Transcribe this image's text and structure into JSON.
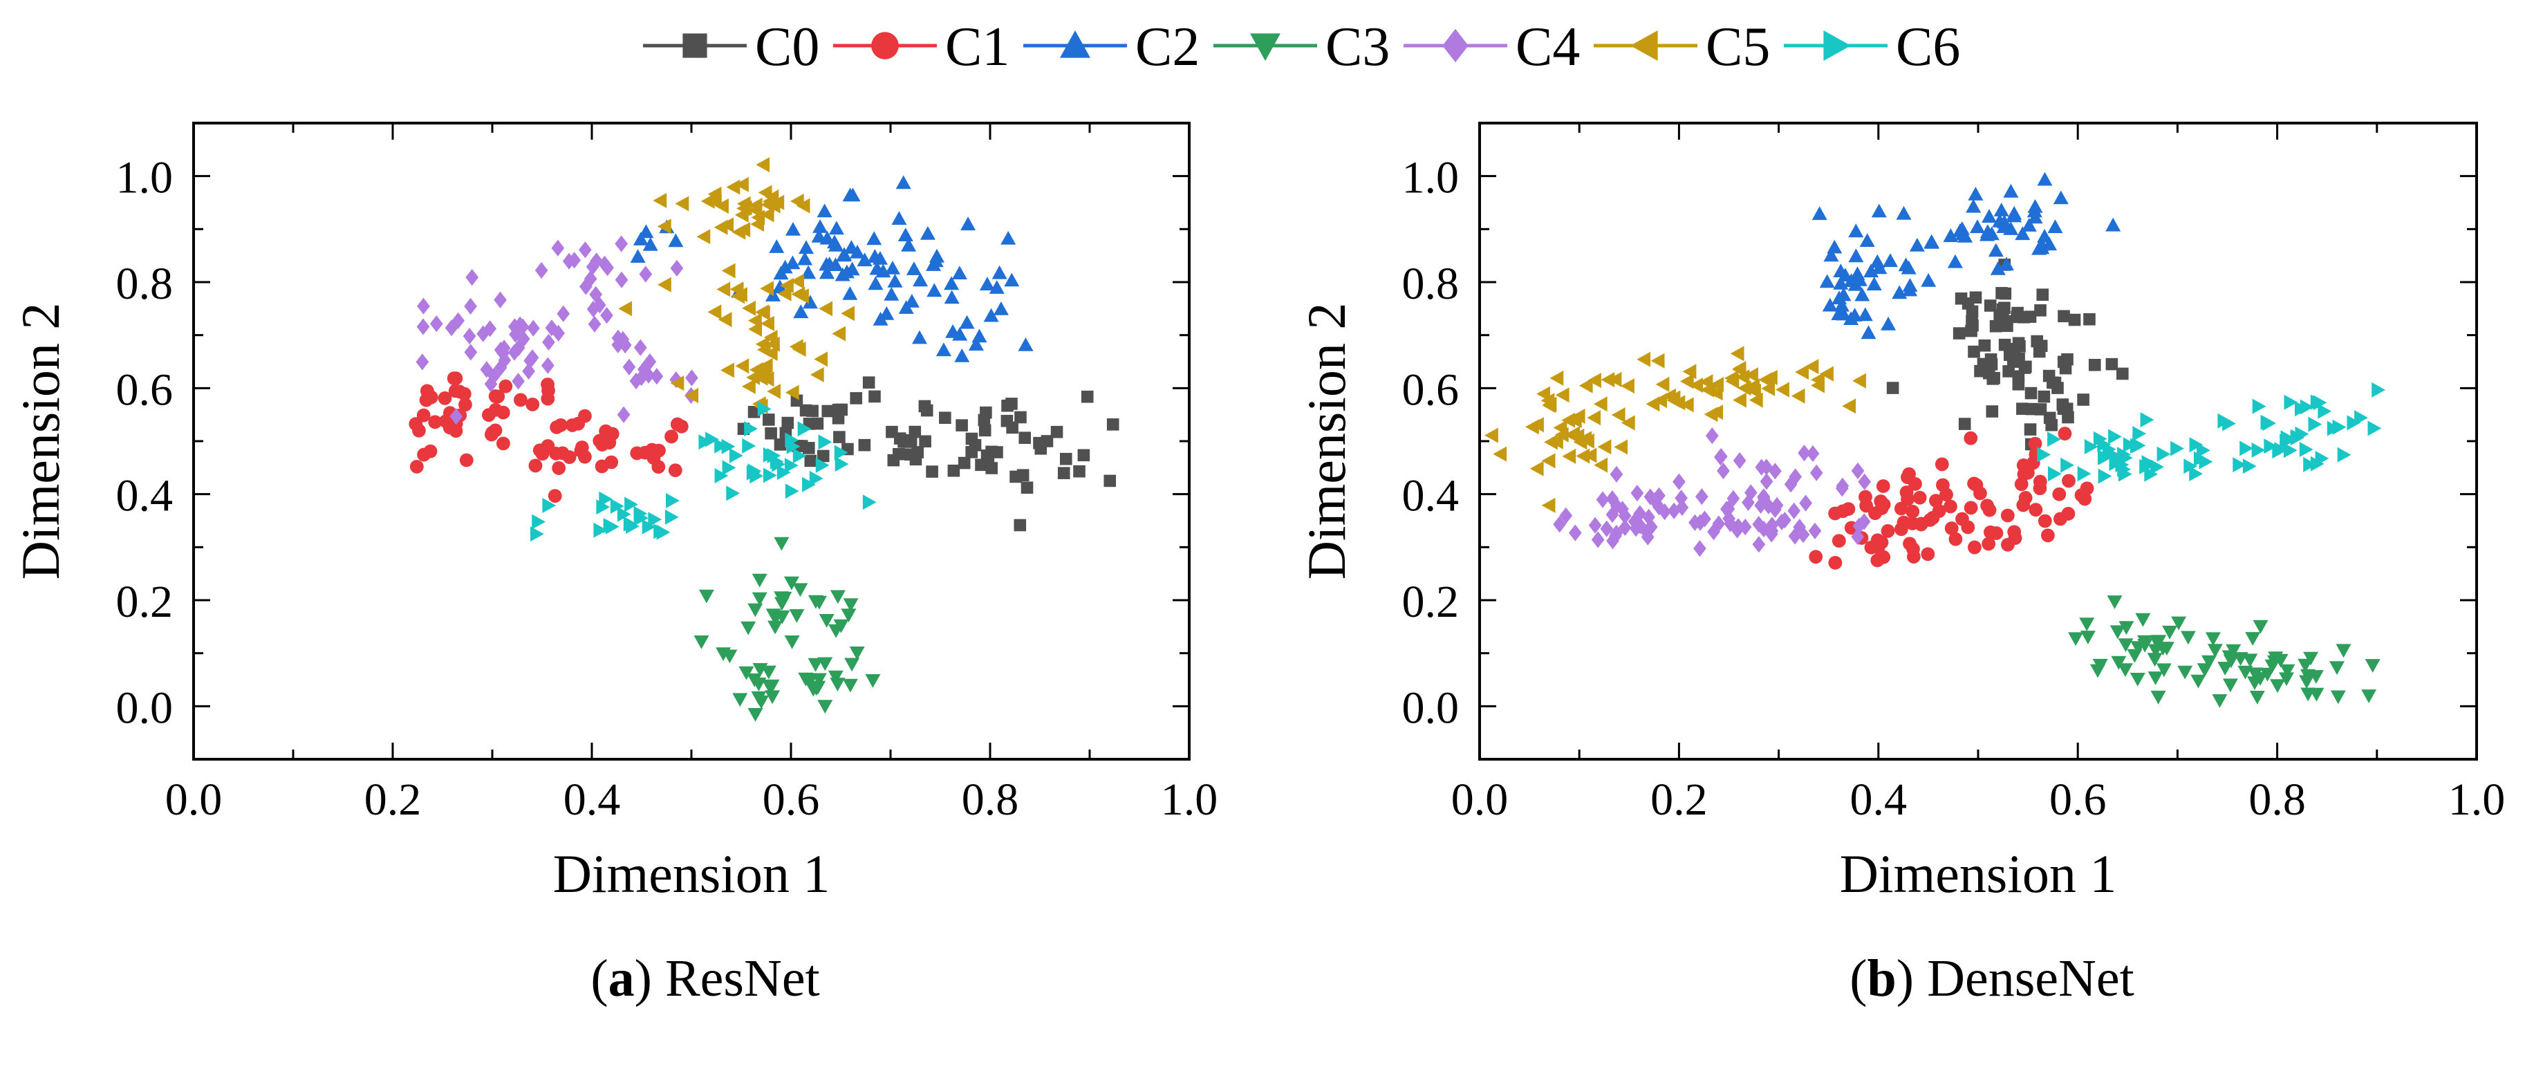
{
  "legend": {
    "entries": [
      {
        "name": "C0",
        "color": "#505050",
        "marker": "square"
      },
      {
        "name": "C1",
        "color": "#e8383d",
        "marker": "circle"
      },
      {
        "name": "C2",
        "color": "#1f6fd6",
        "marker": "triangle-up"
      },
      {
        "name": "C3",
        "color": "#2e9e5b",
        "marker": "triangle-down"
      },
      {
        "name": "C4",
        "color": "#b07ae0",
        "marker": "diamond"
      },
      {
        "name": "C5",
        "color": "#c59a10",
        "marker": "triangle-left"
      },
      {
        "name": "C6",
        "color": "#19c6c6",
        "marker": "triangle-right"
      }
    ]
  },
  "chart_data": [
    {
      "type": "scatter",
      "caption_letter": "a",
      "caption_text": "ResNet",
      "xlabel": "Dimension 1",
      "ylabel": "Dimension 2",
      "xlim": [
        0.0,
        1.0
      ],
      "ylim": [
        -0.1,
        1.1
      ],
      "xticks": [
        "0.0",
        "0.2",
        "0.4",
        "0.6",
        "0.8",
        "1.0"
      ],
      "yticks": [
        "0.0",
        "0.2",
        "0.4",
        "0.6",
        "0.8",
        "1.0"
      ],
      "clusters": [
        {
          "series": "C0",
          "seed": 11,
          "n": 80,
          "blobs": [
            [
              0.62,
              0.52,
              0.03,
              0.03,
              0.2
            ],
            [
              0.73,
              0.52,
              0.04,
              0.04,
              0.3
            ],
            [
              0.83,
              0.49,
              0.04,
              0.05,
              0.5
            ]
          ]
        },
        {
          "series": "C1",
          "seed": 23,
          "n": 75,
          "blobs": [
            [
              0.27,
              0.56,
              0.03,
              0.04,
              0.45
            ],
            [
              0.36,
              0.51,
              0.04,
              0.04,
              0.4
            ],
            [
              0.45,
              0.49,
              0.03,
              0.03,
              0.15
            ]
          ]
        },
        {
          "series": "C2",
          "seed": 37,
          "n": 85,
          "blobs": [
            [
              0.47,
              0.88,
              0.02,
              0.02,
              0.1
            ],
            [
              0.64,
              0.86,
              0.05,
              0.06,
              0.55
            ],
            [
              0.76,
              0.77,
              0.04,
              0.07,
              0.35
            ]
          ]
        },
        {
          "series": "C3",
          "seed": 41,
          "n": 55,
          "blobs": [
            [
              0.6,
              0.18,
              0.04,
              0.05,
              0.5
            ],
            [
              0.6,
              0.05,
              0.04,
              0.03,
              0.5
            ]
          ]
        },
        {
          "series": "C4",
          "seed": 53,
          "n": 75,
          "blobs": [
            [
              0.3,
              0.69,
              0.04,
              0.05,
              0.4
            ],
            [
              0.4,
              0.77,
              0.04,
              0.06,
              0.45
            ],
            [
              0.46,
              0.63,
              0.02,
              0.03,
              0.15
            ]
          ]
        },
        {
          "series": "C5",
          "seed": 61,
          "n": 80,
          "blobs": [
            [
              0.55,
              0.94,
              0.04,
              0.04,
              0.4
            ],
            [
              0.57,
              0.74,
              0.04,
              0.05,
              0.35
            ],
            [
              0.58,
              0.62,
              0.03,
              0.03,
              0.25
            ]
          ]
        },
        {
          "series": "C6",
          "seed": 71,
          "n": 55,
          "blobs": [
            [
              0.44,
              0.36,
              0.04,
              0.02,
              0.4
            ],
            [
              0.59,
              0.47,
              0.04,
              0.04,
              0.6
            ]
          ]
        }
      ]
    },
    {
      "type": "scatter",
      "caption_letter": "b",
      "caption_text": "DenseNet",
      "xlabel": "Dimension 1",
      "ylabel": "Dimension 2",
      "xlim": [
        0.0,
        1.0
      ],
      "ylim": [
        -0.1,
        1.1
      ],
      "xticks": [
        "0.0",
        "0.2",
        "0.4",
        "0.6",
        "0.8",
        "1.0"
      ],
      "yticks": [
        "0.0",
        "0.2",
        "0.4",
        "0.6",
        "0.8",
        "1.0"
      ],
      "clusters": [
        {
          "series": "C0",
          "seed": 13,
          "n": 80,
          "blobs": [
            [
              0.53,
              0.73,
              0.03,
              0.04,
              0.4
            ],
            [
              0.56,
              0.61,
              0.04,
              0.05,
              0.6
            ]
          ]
        },
        {
          "series": "C1",
          "seed": 29,
          "n": 90,
          "blobs": [
            [
              0.43,
              0.35,
              0.04,
              0.04,
              0.45
            ],
            [
              0.53,
              0.4,
              0.04,
              0.05,
              0.55
            ]
          ]
        },
        {
          "series": "C2",
          "seed": 31,
          "n": 80,
          "blobs": [
            [
              0.38,
              0.81,
              0.025,
              0.05,
              0.4
            ],
            [
              0.52,
              0.91,
              0.04,
              0.04,
              0.6
            ]
          ]
        },
        {
          "series": "C3",
          "seed": 43,
          "n": 70,
          "blobs": [
            [
              0.66,
              0.11,
              0.04,
              0.04,
              0.45
            ],
            [
              0.78,
              0.07,
              0.05,
              0.04,
              0.55
            ]
          ]
        },
        {
          "series": "C4",
          "seed": 59,
          "n": 95,
          "blobs": [
            [
              0.18,
              0.35,
              0.04,
              0.03,
              0.45
            ],
            [
              0.31,
              0.39,
              0.05,
              0.05,
              0.55
            ]
          ]
        },
        {
          "series": "C5",
          "seed": 67,
          "n": 85,
          "blobs": [
            [
              0.08,
              0.5,
              0.025,
              0.06,
              0.35
            ],
            [
              0.19,
              0.6,
              0.06,
              0.03,
              0.45
            ],
            [
              0.31,
              0.62,
              0.03,
              0.03,
              0.2
            ]
          ]
        },
        {
          "series": "C6",
          "seed": 73,
          "n": 75,
          "blobs": [
            [
              0.66,
              0.47,
              0.05,
              0.03,
              0.5
            ],
            [
              0.82,
              0.52,
              0.04,
              0.04,
              0.5
            ]
          ]
        }
      ]
    }
  ]
}
